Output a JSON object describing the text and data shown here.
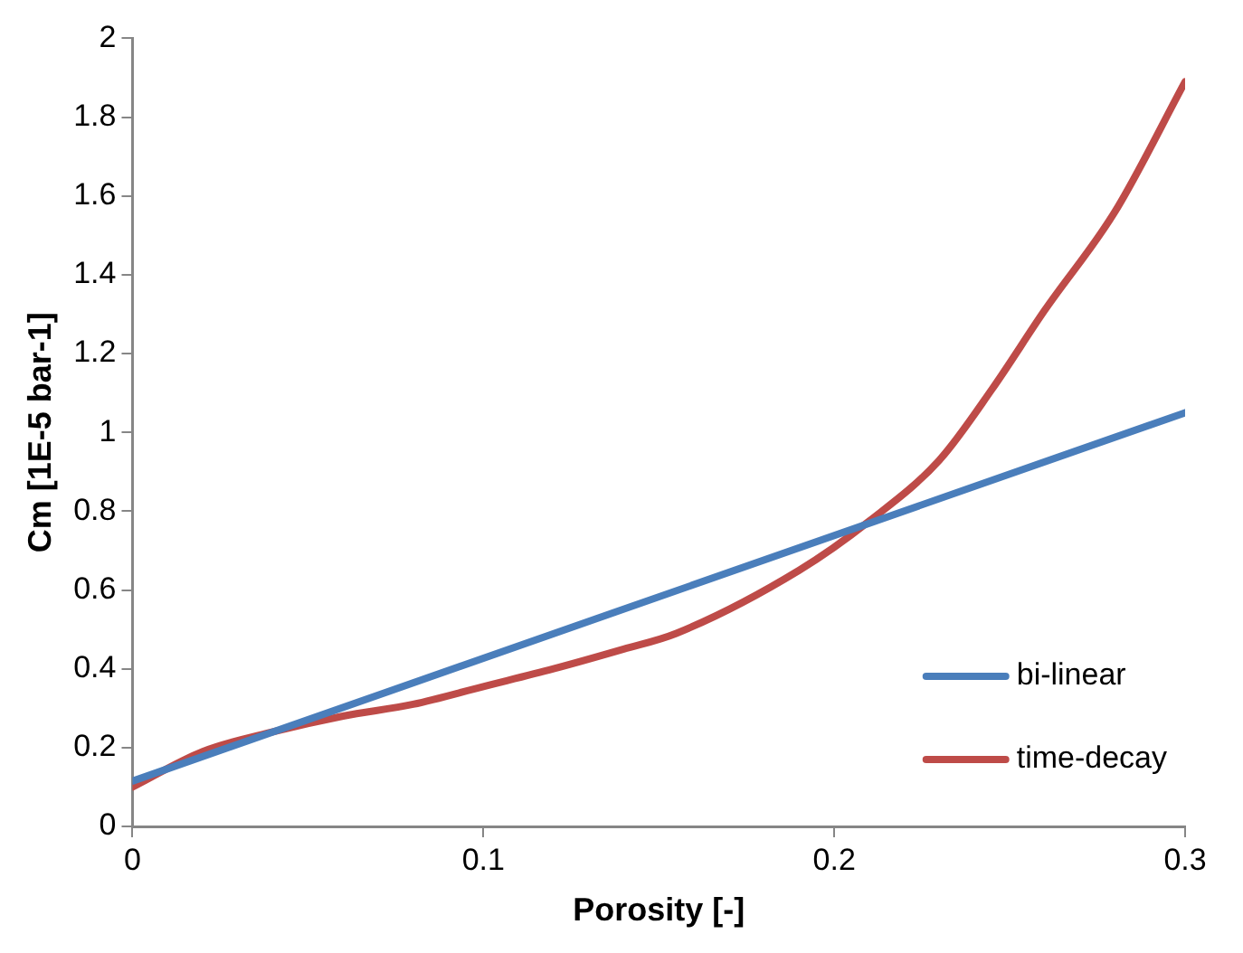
{
  "chart_data": {
    "type": "line",
    "xlabel": "Porosity [-]",
    "ylabel": "Cm [1E-5 bar-1]",
    "xlim": [
      0,
      0.3
    ],
    "xticks": [
      0,
      0.1,
      0.2,
      0.3
    ],
    "ylim": [
      0,
      2
    ],
    "yticks": [
      0,
      0.2,
      0.4,
      0.6,
      0.8,
      1,
      1.2,
      1.4,
      1.6,
      1.8,
      2
    ],
    "grid": false,
    "legend": "bottom right",
    "marker": "none",
    "line_style": "solid",
    "series": [
      {
        "name": "bi-linear",
        "color": "#4a7ebb",
        "x": [
          0,
          0.3
        ],
        "values": [
          0.115,
          1.05
        ]
      },
      {
        "name": "time-decay",
        "color": "#be4b48",
        "x": [
          0,
          0.02,
          0.04,
          0.06,
          0.08,
          0.1,
          0.12,
          0.14,
          0.155,
          0.19,
          0.21,
          0.23,
          0.245,
          0.26,
          0.28,
          0.3
        ],
        "values": [
          0.1,
          0.19,
          0.24,
          0.28,
          0.31,
          0.355,
          0.4,
          0.45,
          0.49,
          0.65,
          0.775,
          0.93,
          1.11,
          1.31,
          1.56,
          1.89
        ]
      }
    ]
  }
}
